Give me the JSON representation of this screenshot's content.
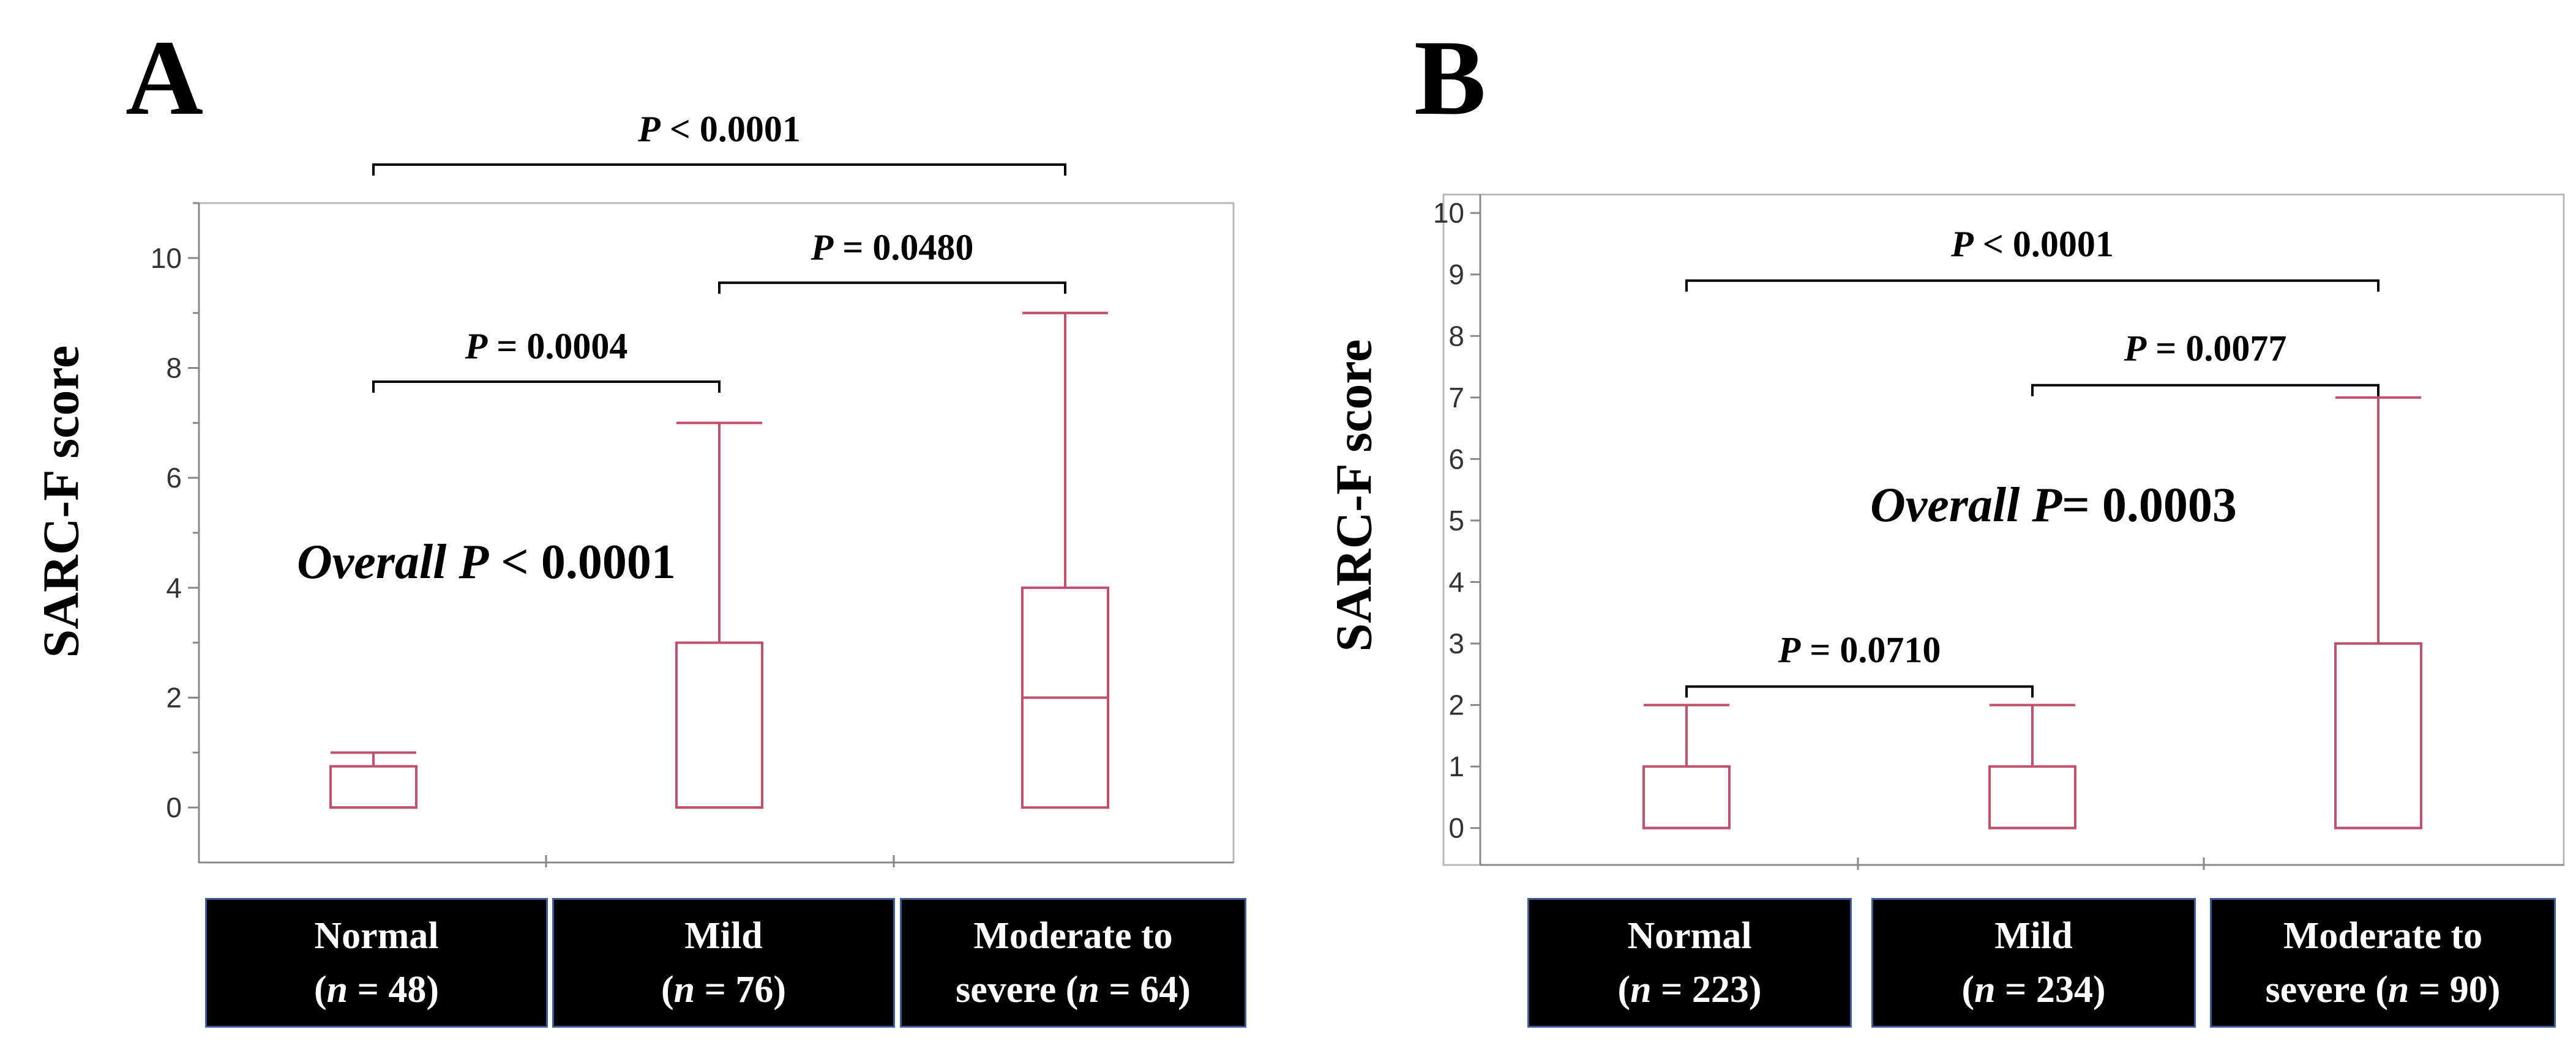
{
  "chart_data": [
    {
      "type": "box",
      "panel_label": "A",
      "ylabel": "SARC-F score",
      "ylim": [
        -1,
        11
      ],
      "yticks": [
        0,
        2,
        4,
        6,
        8,
        10
      ],
      "grid": false,
      "categories": [
        {
          "name": "Normal",
          "n_line": "(n = 48)",
          "name_parts": {
            "n": "n",
            "rest": " = 48)"
          }
        },
        {
          "name": "Mild",
          "n_line": "(n = 76)",
          "name_parts": {
            "n": "n",
            "rest": " = 76)"
          }
        },
        {
          "name": "Moderate to",
          "n_line": "severe (n = 64)",
          "name_parts": {
            "pre": "severe (",
            "n": "n",
            "rest": " = 64)"
          }
        }
      ],
      "boxes": [
        {
          "whisker_low": 0,
          "q1": 0,
          "median": 0,
          "q3": 0.75,
          "whisker_high": 1
        },
        {
          "whisker_low": 0,
          "q1": 0,
          "median": 0,
          "q3": 3,
          "whisker_high": 7
        },
        {
          "whisker_low": 0,
          "q1": 0,
          "median": 2,
          "q3": 4,
          "whisker_high": 9
        }
      ],
      "comparisons": [
        {
          "from": 0,
          "to": 2,
          "y": 11.7,
          "p_letter": "P",
          "p_text": " < 0.0001"
        },
        {
          "from": 0,
          "to": 1,
          "y": 7.75,
          "p_letter": "P",
          "p_text": " = 0.0004"
        },
        {
          "from": 1,
          "to": 2,
          "y": 9.55,
          "p_letter": "P",
          "p_text": " = 0.0480"
        }
      ],
      "overall": {
        "italic": "Overall P",
        "text": " < 0.0001"
      }
    },
    {
      "type": "box",
      "panel_label": "B",
      "ylabel": "SARC-F score",
      "ylim": [
        -0.6,
        10.3
      ],
      "yticks": [
        0,
        1,
        2,
        3,
        4,
        5,
        6,
        7,
        8,
        9,
        10
      ],
      "grid": false,
      "categories": [
        {
          "name": "Normal",
          "n_line": "(n = 223)",
          "name_parts": {
            "n": "n",
            "rest": " = 223)"
          }
        },
        {
          "name": "Mild",
          "n_line": "(n = 234)",
          "name_parts": {
            "n": "n",
            "rest": " = 234)"
          }
        },
        {
          "name": "Moderate to",
          "n_line": "severe (n = 90)",
          "name_parts": {
            "pre": "severe (",
            "n": "n",
            "rest": " = 90)"
          }
        }
      ],
      "boxes": [
        {
          "whisker_low": 0,
          "q1": 0,
          "median": 0,
          "q3": 1,
          "whisker_high": 2
        },
        {
          "whisker_low": 0,
          "q1": 0,
          "median": 0,
          "q3": 1,
          "whisker_high": 2
        },
        {
          "whisker_low": 0,
          "q1": 0,
          "median": 0,
          "q3": 3,
          "whisker_high": 7
        }
      ],
      "comparisons": [
        {
          "from": 0,
          "to": 2,
          "y": 8.9,
          "p_letter": "P",
          "p_text": " < 0.0001"
        },
        {
          "from": 1,
          "to": 2,
          "y": 7.2,
          "p_letter": "P",
          "p_text": " = 0.0077"
        },
        {
          "from": 0,
          "to": 1,
          "y": 2.3,
          "p_letter": "P",
          "p_text": " = 0.0710"
        }
      ],
      "overall": {
        "italic": "Overall P",
        "text": "= 0.0003"
      }
    }
  ],
  "colors": {
    "box_stroke": "#c0506b",
    "axis_frame": "#b8b8b8",
    "category_box_bg": "#000000",
    "category_box_border": "#3d5a99",
    "category_text": "#ffffff"
  }
}
